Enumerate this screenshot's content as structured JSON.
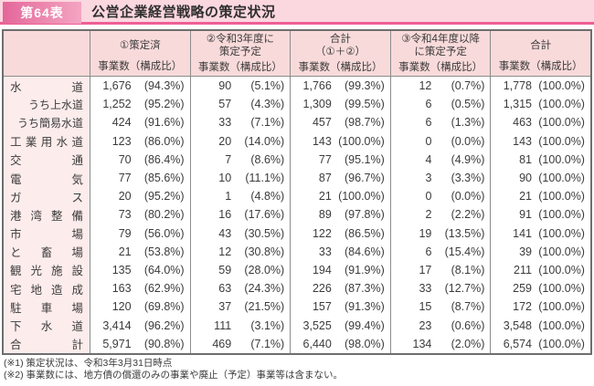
{
  "title": {
    "badge": "第64表",
    "text": "公営企業経営戦略の策定状況"
  },
  "table": {
    "col_headers": [
      {
        "line1": "①策定済",
        "line2": ""
      },
      {
        "line1": "②令和3年度に",
        "line2": "策定予定"
      },
      {
        "line1": "合計",
        "line2": "（①＋②）"
      },
      {
        "line1": "③令和4年度以降",
        "line2": "に策定予定"
      },
      {
        "line1": "合計",
        "line2": ""
      }
    ],
    "subheader": "事業数（構成比）",
    "rows": [
      {
        "label": "水道",
        "indent": false,
        "values": [
          [
            "1,676",
            "(94.3%)"
          ],
          [
            "90",
            "(5.1%)"
          ],
          [
            "1,766",
            "(99.3%)"
          ],
          [
            "12",
            "(0.7%)"
          ],
          [
            "1,778",
            "(100.0%)"
          ]
        ]
      },
      {
        "label": "うち上水道",
        "indent": true,
        "values": [
          [
            "1,252",
            "(95.2%)"
          ],
          [
            "57",
            "(4.3%)"
          ],
          [
            "1,309",
            "(99.5%)"
          ],
          [
            "6",
            "(0.5%)"
          ],
          [
            "1,315",
            "(100.0%)"
          ]
        ]
      },
      {
        "label": "うち簡易水道",
        "indent": true,
        "values": [
          [
            "424",
            "(91.6%)"
          ],
          [
            "33",
            "(7.1%)"
          ],
          [
            "457",
            "(98.7%)"
          ],
          [
            "6",
            "(1.3%)"
          ],
          [
            "463",
            "(100.0%)"
          ]
        ]
      },
      {
        "label": "工業用水道",
        "indent": false,
        "values": [
          [
            "123",
            "(86.0%)"
          ],
          [
            "20",
            "(14.0%)"
          ],
          [
            "143",
            "(100.0%)"
          ],
          [
            "0",
            "(0.0%)"
          ],
          [
            "143",
            "(100.0%)"
          ]
        ]
      },
      {
        "label": "交通",
        "indent": false,
        "values": [
          [
            "70",
            "(86.4%)"
          ],
          [
            "7",
            "(8.6%)"
          ],
          [
            "77",
            "(95.1%)"
          ],
          [
            "4",
            "(4.9%)"
          ],
          [
            "81",
            "(100.0%)"
          ]
        ]
      },
      {
        "label": "電気",
        "indent": false,
        "values": [
          [
            "77",
            "(85.6%)"
          ],
          [
            "10",
            "(11.1%)"
          ],
          [
            "87",
            "(96.7%)"
          ],
          [
            "3",
            "(3.3%)"
          ],
          [
            "90",
            "(100.0%)"
          ]
        ]
      },
      {
        "label": "ガス",
        "indent": false,
        "values": [
          [
            "20",
            "(95.2%)"
          ],
          [
            "1",
            "(4.8%)"
          ],
          [
            "21",
            "(100.0%)"
          ],
          [
            "0",
            "(0.0%)"
          ],
          [
            "21",
            "(100.0%)"
          ]
        ]
      },
      {
        "label": "港湾整備",
        "indent": false,
        "values": [
          [
            "73",
            "(80.2%)"
          ],
          [
            "16",
            "(17.6%)"
          ],
          [
            "89",
            "(97.8%)"
          ],
          [
            "2",
            "(2.2%)"
          ],
          [
            "91",
            "(100.0%)"
          ]
        ]
      },
      {
        "label": "市場",
        "indent": false,
        "values": [
          [
            "79",
            "(56.0%)"
          ],
          [
            "43",
            "(30.5%)"
          ],
          [
            "122",
            "(86.5%)"
          ],
          [
            "19",
            "(13.5%)"
          ],
          [
            "141",
            "(100.0%)"
          ]
        ]
      },
      {
        "label": "と畜場",
        "indent": false,
        "values": [
          [
            "21",
            "(53.8%)"
          ],
          [
            "12",
            "(30.8%)"
          ],
          [
            "33",
            "(84.6%)"
          ],
          [
            "6",
            "(15.4%)"
          ],
          [
            "39",
            "(100.0%)"
          ]
        ]
      },
      {
        "label": "観光施設",
        "indent": false,
        "values": [
          [
            "135",
            "(64.0%)"
          ],
          [
            "59",
            "(28.0%)"
          ],
          [
            "194",
            "(91.9%)"
          ],
          [
            "17",
            "(8.1%)"
          ],
          [
            "211",
            "(100.0%)"
          ]
        ]
      },
      {
        "label": "宅地造成",
        "indent": false,
        "values": [
          [
            "163",
            "(62.9%)"
          ],
          [
            "63",
            "(24.3%)"
          ],
          [
            "226",
            "(87.3%)"
          ],
          [
            "33",
            "(12.7%)"
          ],
          [
            "259",
            "(100.0%)"
          ]
        ]
      },
      {
        "label": "駐車場",
        "indent": false,
        "values": [
          [
            "120",
            "(69.8%)"
          ],
          [
            "37",
            "(21.5%)"
          ],
          [
            "157",
            "(91.3%)"
          ],
          [
            "15",
            "(8.7%)"
          ],
          [
            "172",
            "(100.0%)"
          ]
        ]
      },
      {
        "label": "下水道",
        "indent": false,
        "values": [
          [
            "3,414",
            "(96.2%)"
          ],
          [
            "111",
            "(3.1%)"
          ],
          [
            "3,525",
            "(99.4%)"
          ],
          [
            "23",
            "(0.6%)"
          ],
          [
            "3,548",
            "(100.0%)"
          ]
        ]
      },
      {
        "label": "合計",
        "indent": false,
        "values": [
          [
            "5,971",
            "(90.8%)"
          ],
          [
            "469",
            "(7.1%)"
          ],
          [
            "6,440",
            "(98.0%)"
          ],
          [
            "134",
            "(2.0%)"
          ],
          [
            "6,574",
            "(100.0%)"
          ]
        ]
      }
    ]
  },
  "notes": [
    "(※1) 策定状況は、令和3年3月31日時点",
    "(※2) 事業数には、地方債の償還のみの事業や廃止（予定）事業等は含まない。"
  ]
}
